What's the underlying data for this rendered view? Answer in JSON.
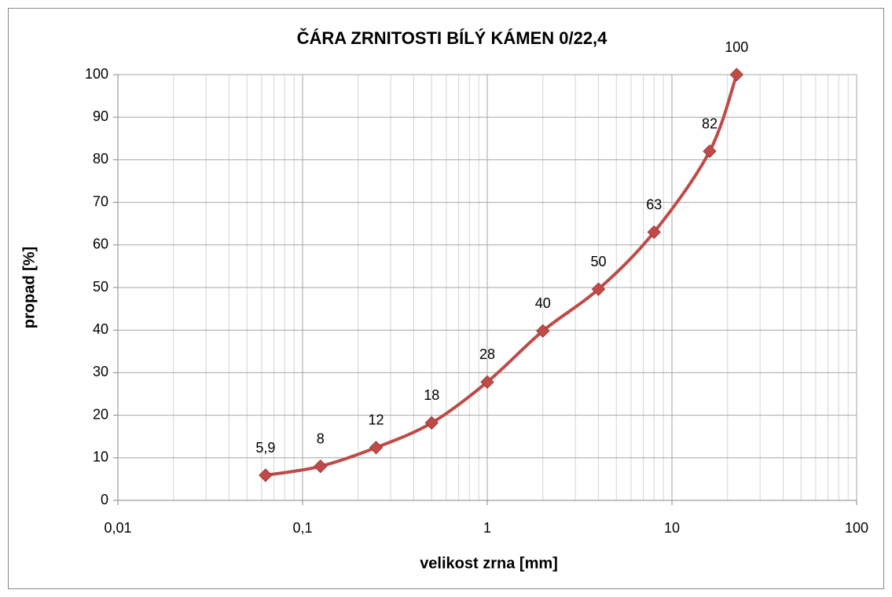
{
  "chart_data": {
    "type": "line",
    "title": "ČÁRA ZRNITOSTI BÍLÝ KÁMEN  0/22,4",
    "xlabel": "velikost zrna [mm]",
    "ylabel": "propad [%]",
    "x": [
      0.063,
      0.125,
      0.25,
      0.5,
      1,
      2,
      4,
      8,
      16,
      22.4
    ],
    "series": [
      {
        "name": "propad",
        "color": "#be4b48",
        "values": [
          5.9,
          8,
          12.4,
          18.2,
          27.8,
          39.8,
          49.6,
          63,
          82,
          100
        ],
        "value_labels": [
          "5,9",
          "8",
          "12",
          "18",
          "28",
          "40",
          "50",
          "63",
          "82",
          "100"
        ]
      }
    ],
    "xscale": "log",
    "xlim": [
      0.01,
      100
    ],
    "xticks": [
      {
        "value": 0.01,
        "label": "0,01"
      },
      {
        "value": 0.1,
        "label": "0,1"
      },
      1,
      10,
      100
    ],
    "xminorticks": [
      0.02,
      0.03,
      0.04,
      0.05,
      0.06,
      0.07,
      0.08,
      0.09,
      0.2,
      0.3,
      0.4,
      0.5,
      0.6,
      0.7,
      0.8,
      0.9,
      2,
      3,
      4,
      5,
      6,
      7,
      8,
      9,
      20,
      30,
      40,
      50,
      60,
      70,
      80,
      90
    ],
    "ylim": [
      0,
      100
    ],
    "yticks": [
      0,
      10,
      20,
      30,
      40,
      50,
      60,
      70,
      80,
      90,
      100
    ],
    "grid": true
  }
}
